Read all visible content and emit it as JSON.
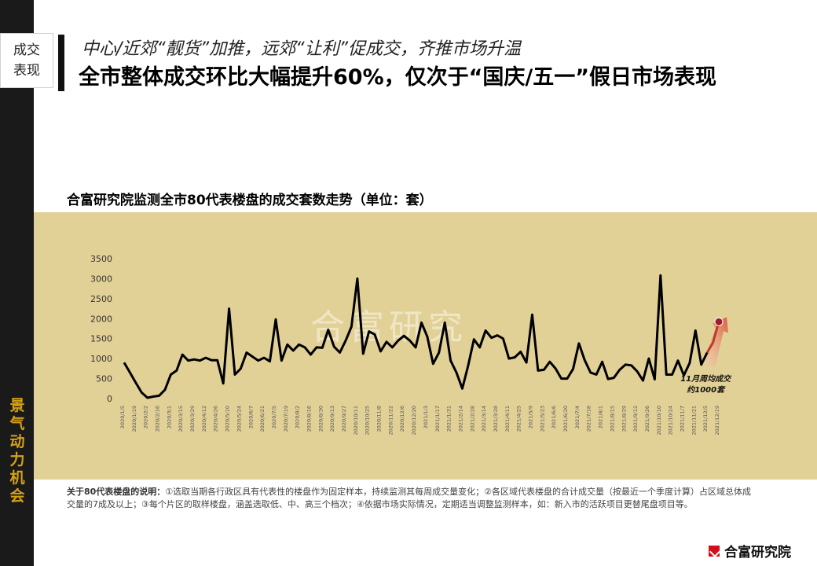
{
  "section": {
    "line1": "成交",
    "line2": "表现"
  },
  "header": {
    "subtitle": "中心/近郊“靓货”加推，远郊“让利”促成交，齐推市场升温",
    "title": "全市整体成交环比大幅提升60%，仅次于“国庆/五一”假日市场表现"
  },
  "sidebar": {
    "slogan": "景气 动力 机会"
  },
  "chart_data": {
    "type": "line",
    "title": "合富研究院监测全市80代表楼盘的成交套数走势（单位：套）",
    "ylim": [
      0,
      3500
    ],
    "yticks": [
      0,
      500,
      1000,
      1500,
      2000,
      2500,
      3000,
      3500
    ],
    "xtick_labels": [
      "2020/1/5",
      "2020/1/19",
      "2020/2/2",
      "2020/2/16",
      "2020/3/1",
      "2020/3/15",
      "2020/3/29",
      "2020/4/12",
      "2020/4/26",
      "2020/5/10",
      "2020/5/24",
      "2020/6/7",
      "2020/6/21",
      "2020/7/5",
      "2020/7/19",
      "2020/8/2",
      "2020/8/16",
      "2020/8/30",
      "2020/9/13",
      "2020/9/27",
      "2020/10/11",
      "2020/10/25",
      "2020/11/8",
      "2020/11/22",
      "2020/12/6",
      "2020/12/20",
      "2021/1/3",
      "2021/1/17",
      "2021/1/31",
      "2021/2/14",
      "2021/2/28",
      "2021/3/14",
      "2021/3/28",
      "2021/4/11",
      "2021/4/25",
      "2021/5/9",
      "2021/5/23",
      "2021/6/6",
      "2021/6/20",
      "2021/7/4",
      "2021/7/18",
      "2021/8/1",
      "2021/8/15",
      "2021/8/29",
      "2021/9/12",
      "2021/9/26",
      "2021/10/10",
      "2021/10/24",
      "2021/11/7",
      "2021/11/21",
      "2021/12/5",
      "2021/12/19"
    ],
    "series": [
      {
        "values": [
          900,
          650,
          400,
          150,
          20,
          50,
          70,
          220,
          600,
          700,
          1100,
          950,
          980,
          950,
          1020,
          960,
          960,
          380,
          2250,
          600,
          750,
          1150,
          1050,
          950,
          1020,
          930,
          1980,
          950,
          1350,
          1200,
          1350,
          1280,
          1100,
          1280,
          1270,
          1720,
          1300,
          1150,
          1450,
          1800,
          3000,
          1120,
          1680,
          1600,
          1180,
          1420,
          1280,
          1450,
          1570,
          1450,
          1280,
          1900,
          1550,
          870,
          1150,
          1900,
          950,
          650,
          250,
          820,
          1480,
          1280,
          1700,
          1520,
          1580,
          1500,
          1000,
          1030,
          1170,
          900,
          2100,
          700,
          720,
          920,
          750,
          500,
          500,
          740,
          1380,
          960,
          650,
          600,
          920,
          490,
          520,
          720,
          850,
          830,
          680,
          450,
          1000,
          480,
          3080,
          600,
          600,
          950,
          580,
          890,
          1700,
          850,
          1150,
          1400,
          1920
        ]
      }
    ],
    "highlight": {
      "label_line1": "11月周均成交",
      "label_line2": "约1000套",
      "color": "#c0392b"
    },
    "line_color": "#000000",
    "background_color": "#e2d197",
    "watermark": "合富研究"
  },
  "note": {
    "label": "关于80代表楼盘的说明：",
    "text": "①选取当期各行政区具有代表性的楼盘作为固定样本，持续监测其每周成交量变化；②各区域代表楼盘的合计成交量（按最近一个季度计算）占区域总体成交量的7成及以上；③每个片区的取样楼盘，涵盖选取低、中、高三个档次；④依据市场实际情况，定期适当调整监测样本，如：新入市的活跃项目更替尾盘项目等。"
  },
  "logo": {
    "text": "合富研究院"
  }
}
